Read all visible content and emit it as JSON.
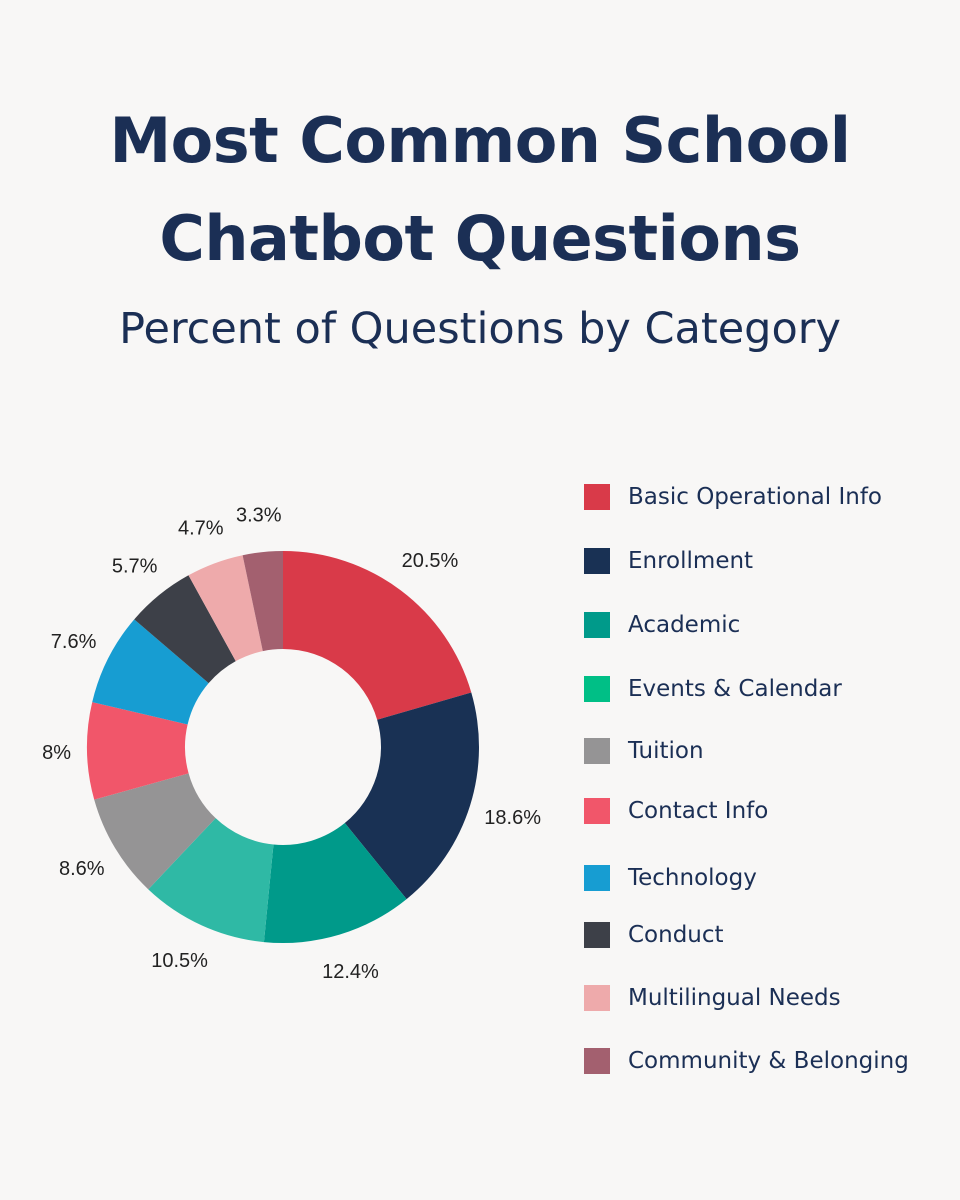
{
  "title_line_1": "Most Common School",
  "title_line_2": "Chatbot Questions",
  "subtitle": "Percent of Questions by Category",
  "chart_data": {
    "type": "pie",
    "variant": "donut",
    "title": "Most Common School Chatbot Questions",
    "subtitle": "Percent of Questions by Category",
    "legend_position": "right",
    "slices": [
      {
        "label": "Basic Operational Info",
        "value": 20.5,
        "value_label": "20.5%",
        "color": "#d93a49"
      },
      {
        "label": "Enrollment",
        "value": 18.6,
        "value_label": "18.6%",
        "color": "#193154"
      },
      {
        "label": "Academic",
        "value": 12.4,
        "value_label": "12.4%",
        "color": "#009a8a"
      },
      {
        "label": "Events & Calendar",
        "value": 10.5,
        "value_label": "10.5%",
        "color": "#2fb9a5"
      },
      {
        "label": "Tuition",
        "value": 8.6,
        "value_label": "8.6%",
        "color": "#959495"
      },
      {
        "label": "Contact Info",
        "value": 8,
        "value_label": "8%",
        "color": "#f1566a"
      },
      {
        "label": "Technology",
        "value": 7.6,
        "value_label": "7.6%",
        "color": "#179dd2"
      },
      {
        "label": "Conduct",
        "value": 5.7,
        "value_label": "5.7%",
        "color": "#3d4048"
      },
      {
        "label": "Multilingual Needs",
        "value": 4.7,
        "value_label": "4.7%",
        "color": "#eeaaab"
      },
      {
        "label": "Community & Belonging",
        "value": 3.3,
        "value_label": "3.3%",
        "color": "#a3606f"
      }
    ],
    "legend": [
      {
        "label": "Basic Operational Info",
        "color": "#d93a49"
      },
      {
        "label": "Enrollment",
        "color": "#193154"
      },
      {
        "label": "Academic",
        "color": "#009a8a"
      },
      {
        "label": "Events & Calendar",
        "color": "#00bf86"
      },
      {
        "label": "Tuition",
        "color": "#959495"
      },
      {
        "label": " Contact Info",
        "color": "#f1566a"
      },
      {
        "label": " Technology",
        "color": "#179dd2"
      },
      {
        "label": "Conduct",
        "color": "#3d4048"
      },
      {
        "label": "Multilingual Needs",
        "color": "#eeaaab"
      },
      {
        "label": "Community & Belonging",
        "color": "#a3606f"
      }
    ]
  }
}
